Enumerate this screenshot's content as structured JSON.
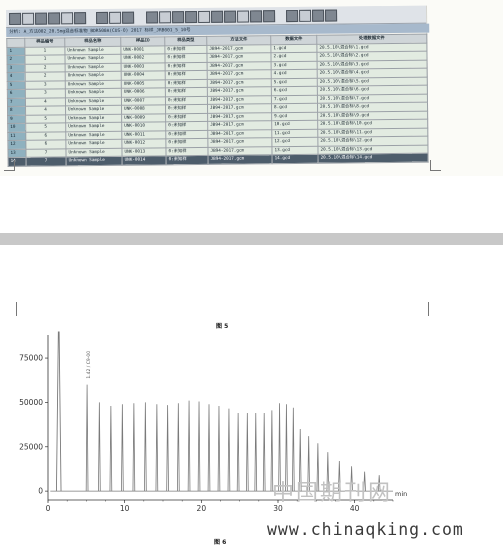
{
  "info_bar": "分析: A_方法002_20.5mg混合标准物_BDR500A(CUS-O) 2017 标样_JRB001_5_10号",
  "table": {
    "headers": [
      "",
      "样品编号",
      "样品名称",
      "样品ID",
      "样品类型",
      "方法文件",
      "数据文件",
      "处理数据文件"
    ],
    "rows": [
      [
        "1",
        "1",
        "Unknown Sample",
        "UNK-0001",
        "0:未知样",
        "JB94-2017.gcm",
        "1.gcd",
        "20.5.10\\混合标\\1.gcd"
      ],
      [
        "2",
        "1",
        "Unknown Sample",
        "UNK-0002",
        "0:未知样",
        "JB94-2017.gcm",
        "2.gcd",
        "20.5.10\\混合标\\2.gcd"
      ],
      [
        "3",
        "2",
        "Unknown Sample",
        "UNK-0003",
        "0:未知样",
        "JB94-2017.gcm",
        "3.gcd",
        "20.5.10\\混合标\\3.gcd"
      ],
      [
        "4",
        "2",
        "Unknown Sample",
        "UNK-0004",
        "0:未知样",
        "JB94-2017.gcm",
        "4.gcd",
        "20.5.10\\混合标\\4.gcd"
      ],
      [
        "5",
        "3",
        "Unknown Sample",
        "UNK-0005",
        "0:未知样",
        "JB94-2017.gcm",
        "5.gcd",
        "20.5.10\\混合标\\5.gcd"
      ],
      [
        "6",
        "3",
        "Unknown Sample",
        "UNK-0006",
        "0:未知样",
        "JB94-2017.gcm",
        "6.gcd",
        "20.5.10\\混合标\\6.gcd"
      ],
      [
        "7",
        "4",
        "Unknown Sample",
        "UNK-0007",
        "0:未知样",
        "JB94-2017.gcm",
        "7.gcd",
        "20.5.10\\混合标\\7.gcd"
      ],
      [
        "8",
        "4",
        "Unknown Sample",
        "UNK-0008",
        "0:未知样",
        "JB94-2017.gcm",
        "8.gcd",
        "20.5.10\\混合标\\8.gcd"
      ],
      [
        "9",
        "5",
        "Unknown Sample",
        "UNK-0009",
        "0:未知样",
        "JB94-2017.gcm",
        "9.gcd",
        "20.5.10\\混合标\\9.gcd"
      ],
      [
        "10",
        "5",
        "Unknown Sample",
        "UNK-0010",
        "0:未知样",
        "JB94-2017.gcm",
        "10.gcd",
        "20.5.10\\混合标\\10.gcd"
      ],
      [
        "11",
        "6",
        "Unknown Sample",
        "UNK-0011",
        "0:未知样",
        "JB94-2017.gcm",
        "11.gcd",
        "20.5.10\\混合标\\11.gcd"
      ],
      [
        "12",
        "6",
        "Unknown Sample",
        "UNK-0012",
        "0:未知样",
        "JB94-2017.gcm",
        "12.gcd",
        "20.5.10\\混合标\\12.gcd"
      ],
      [
        "13",
        "7",
        "Unknown Sample",
        "UNK-0013",
        "0:未知样",
        "JB94-2017.gcm",
        "13.gcd",
        "20.5.10\\混合标\\13.gcd"
      ],
      [
        "14",
        "7",
        "Unknown Sample",
        "UNK-0014",
        "0:未知样",
        "JB94-2017.gcm",
        "14.gcd",
        "20.5.10\\混合标\\14.gcd"
      ]
    ],
    "selected_row": 13
  },
  "toolbar_icons": [
    "open-icon",
    "save-icon",
    "print-icon",
    "grid-icon",
    "table-icon",
    "window-icon",
    "settings-icon",
    "run-icon",
    "pause-icon",
    "stop-icon"
  ],
  "figure5_caption": "图 5",
  "figure6_caption": "图 6",
  "peak_label": "1.42 / C9-00",
  "watermark": "中国期刊网",
  "url": "www.chinaqking.com",
  "chart_data": {
    "type": "line",
    "xlabel": "min",
    "ylabel": "",
    "xlim": [
      0,
      45
    ],
    "ylim": [
      -5000,
      88000
    ],
    "xticks": [
      0,
      10,
      20,
      30,
      40
    ],
    "yticks": [
      0,
      25000,
      50000,
      75000
    ],
    "ytick_labels": [
      "0",
      "25000",
      "50000",
      "75000"
    ],
    "baseline": 0,
    "solvent_peak": {
      "x": 1.4,
      "y": 90000
    },
    "peaks": [
      {
        "x": 5.1,
        "y": 60000
      },
      {
        "x": 6.7,
        "y": 50000
      },
      {
        "x": 8.2,
        "y": 48000
      },
      {
        "x": 9.7,
        "y": 49000
      },
      {
        "x": 11.2,
        "y": 49500
      },
      {
        "x": 12.7,
        "y": 50000
      },
      {
        "x": 14.2,
        "y": 49000
      },
      {
        "x": 15.6,
        "y": 48500
      },
      {
        "x": 17.0,
        "y": 49500
      },
      {
        "x": 18.4,
        "y": 51000
      },
      {
        "x": 19.7,
        "y": 50500
      },
      {
        "x": 21.0,
        "y": 49000
      },
      {
        "x": 22.3,
        "y": 48000
      },
      {
        "x": 23.6,
        "y": 46500
      },
      {
        "x": 24.8,
        "y": 44000
      },
      {
        "x": 26.0,
        "y": 44000
      },
      {
        "x": 27.1,
        "y": 44000
      },
      {
        "x": 28.2,
        "y": 44000
      },
      {
        "x": 29.2,
        "y": 45500
      },
      {
        "x": 30.2,
        "y": 49500
      },
      {
        "x": 31.1,
        "y": 49000
      },
      {
        "x": 32.0,
        "y": 47000
      },
      {
        "x": 32.9,
        "y": 35000
      },
      {
        "x": 34.0,
        "y": 31000
      },
      {
        "x": 35.2,
        "y": 27000
      },
      {
        "x": 36.5,
        "y": 22000
      },
      {
        "x": 38.0,
        "y": 17000
      },
      {
        "x": 39.6,
        "y": 14000
      },
      {
        "x": 41.3,
        "y": 11000
      },
      {
        "x": 43.2,
        "y": 9000
      }
    ]
  },
  "colors": {
    "trace": "#7a7a7a",
    "axis": "#333333",
    "selected_row": "#4d5d6b",
    "row_bg": "#e2ebe1"
  }
}
